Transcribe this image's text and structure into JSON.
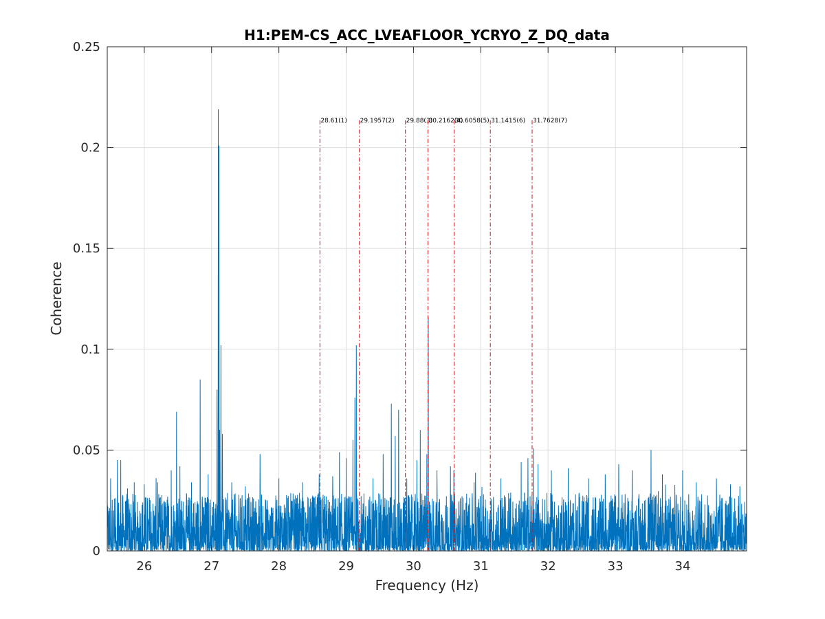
{
  "chart_data": {
    "type": "line",
    "title": "H1:PEM-CS_ACC_LVEAFLOOR_YCRYO_Z_DQ_data",
    "xlabel": "Frequency (Hz)",
    "ylabel": "Coherence",
    "xlim": [
      25.45,
      34.95
    ],
    "ylim": [
      0,
      0.25
    ],
    "xticks": [
      26,
      27,
      28,
      29,
      30,
      31,
      32,
      33,
      34
    ],
    "xtick_labels": [
      "26",
      "27",
      "28",
      "29",
      "30",
      "31",
      "32",
      "33",
      "34"
    ],
    "yticks": [
      0,
      0.05,
      0.1,
      0.15,
      0.2,
      0.25
    ],
    "ytick_labels": [
      "0",
      "0.05",
      "0.1",
      "0.15",
      "0.2",
      "0.25"
    ],
    "grid": true,
    "series_color": "#0072BD",
    "marker_color": "#C0141C",
    "baseline_noise_level": 0.012,
    "peaks": [
      {
        "x": 25.5,
        "y": 0.036
      },
      {
        "x": 25.6,
        "y": 0.045
      },
      {
        "x": 25.65,
        "y": 0.045
      },
      {
        "x": 25.75,
        "y": 0.031
      },
      {
        "x": 25.85,
        "y": 0.034
      },
      {
        "x": 26.0,
        "y": 0.033
      },
      {
        "x": 26.2,
        "y": 0.034
      },
      {
        "x": 26.4,
        "y": 0.04
      },
      {
        "x": 26.48,
        "y": 0.069
      },
      {
        "x": 26.53,
        "y": 0.042
      },
      {
        "x": 26.7,
        "y": 0.034
      },
      {
        "x": 26.83,
        "y": 0.085
      },
      {
        "x": 26.95,
        "y": 0.038
      },
      {
        "x": 27.08,
        "y": 0.08
      },
      {
        "x": 27.1,
        "y": 0.219
      },
      {
        "x": 27.11,
        "y": 0.201
      },
      {
        "x": 27.12,
        "y": 0.06
      },
      {
        "x": 27.14,
        "y": 0.102
      },
      {
        "x": 27.16,
        "y": 0.058
      },
      {
        "x": 27.3,
        "y": 0.034
      },
      {
        "x": 27.5,
        "y": 0.032
      },
      {
        "x": 27.72,
        "y": 0.048
      },
      {
        "x": 28.0,
        "y": 0.036
      },
      {
        "x": 28.35,
        "y": 0.034
      },
      {
        "x": 28.6,
        "y": 0.038
      },
      {
        "x": 28.8,
        "y": 0.037
      },
      {
        "x": 28.9,
        "y": 0.049
      },
      {
        "x": 29.0,
        "y": 0.046
      },
      {
        "x": 29.1,
        "y": 0.055
      },
      {
        "x": 29.13,
        "y": 0.076
      },
      {
        "x": 29.15,
        "y": 0.102
      },
      {
        "x": 29.4,
        "y": 0.036
      },
      {
        "x": 29.55,
        "y": 0.048
      },
      {
        "x": 29.67,
        "y": 0.073
      },
      {
        "x": 29.73,
        "y": 0.057
      },
      {
        "x": 29.78,
        "y": 0.07
      },
      {
        "x": 29.9,
        "y": 0.036
      },
      {
        "x": 30.05,
        "y": 0.045
      },
      {
        "x": 30.1,
        "y": 0.06
      },
      {
        "x": 30.2,
        "y": 0.048
      },
      {
        "x": 30.22,
        "y": 0.116
      },
      {
        "x": 30.35,
        "y": 0.04
      },
      {
        "x": 30.55,
        "y": 0.042
      },
      {
        "x": 30.6,
        "y": 0.04
      },
      {
        "x": 30.9,
        "y": 0.034
      },
      {
        "x": 31.3,
        "y": 0.036
      },
      {
        "x": 31.6,
        "y": 0.044
      },
      {
        "x": 31.7,
        "y": 0.046
      },
      {
        "x": 31.78,
        "y": 0.051
      },
      {
        "x": 31.85,
        "y": 0.043
      },
      {
        "x": 32.05,
        "y": 0.04
      },
      {
        "x": 32.3,
        "y": 0.041
      },
      {
        "x": 32.6,
        "y": 0.036
      },
      {
        "x": 32.85,
        "y": 0.038
      },
      {
        "x": 33.05,
        "y": 0.043
      },
      {
        "x": 33.25,
        "y": 0.04
      },
      {
        "x": 33.53,
        "y": 0.05
      },
      {
        "x": 33.7,
        "y": 0.038
      },
      {
        "x": 34.0,
        "y": 0.04
      },
      {
        "x": 34.2,
        "y": 0.034
      },
      {
        "x": 34.5,
        "y": 0.036
      },
      {
        "x": 34.85,
        "y": 0.032
      }
    ],
    "markers": [
      {
        "x": 28.61,
        "label": "28.61(1)"
      },
      {
        "x": 29.1957,
        "label": "29.1957(2)"
      },
      {
        "x": 29.88,
        "label": "29.88(3)"
      },
      {
        "x": 30.2162,
        "label": "30.2162(4)"
      },
      {
        "x": 30.6058,
        "label": "30.6058(5)"
      },
      {
        "x": 31.1415,
        "label": "31.1415(6)"
      },
      {
        "x": 31.7628,
        "label": "31.7628(7)"
      }
    ],
    "marker_top": 0.219
  }
}
